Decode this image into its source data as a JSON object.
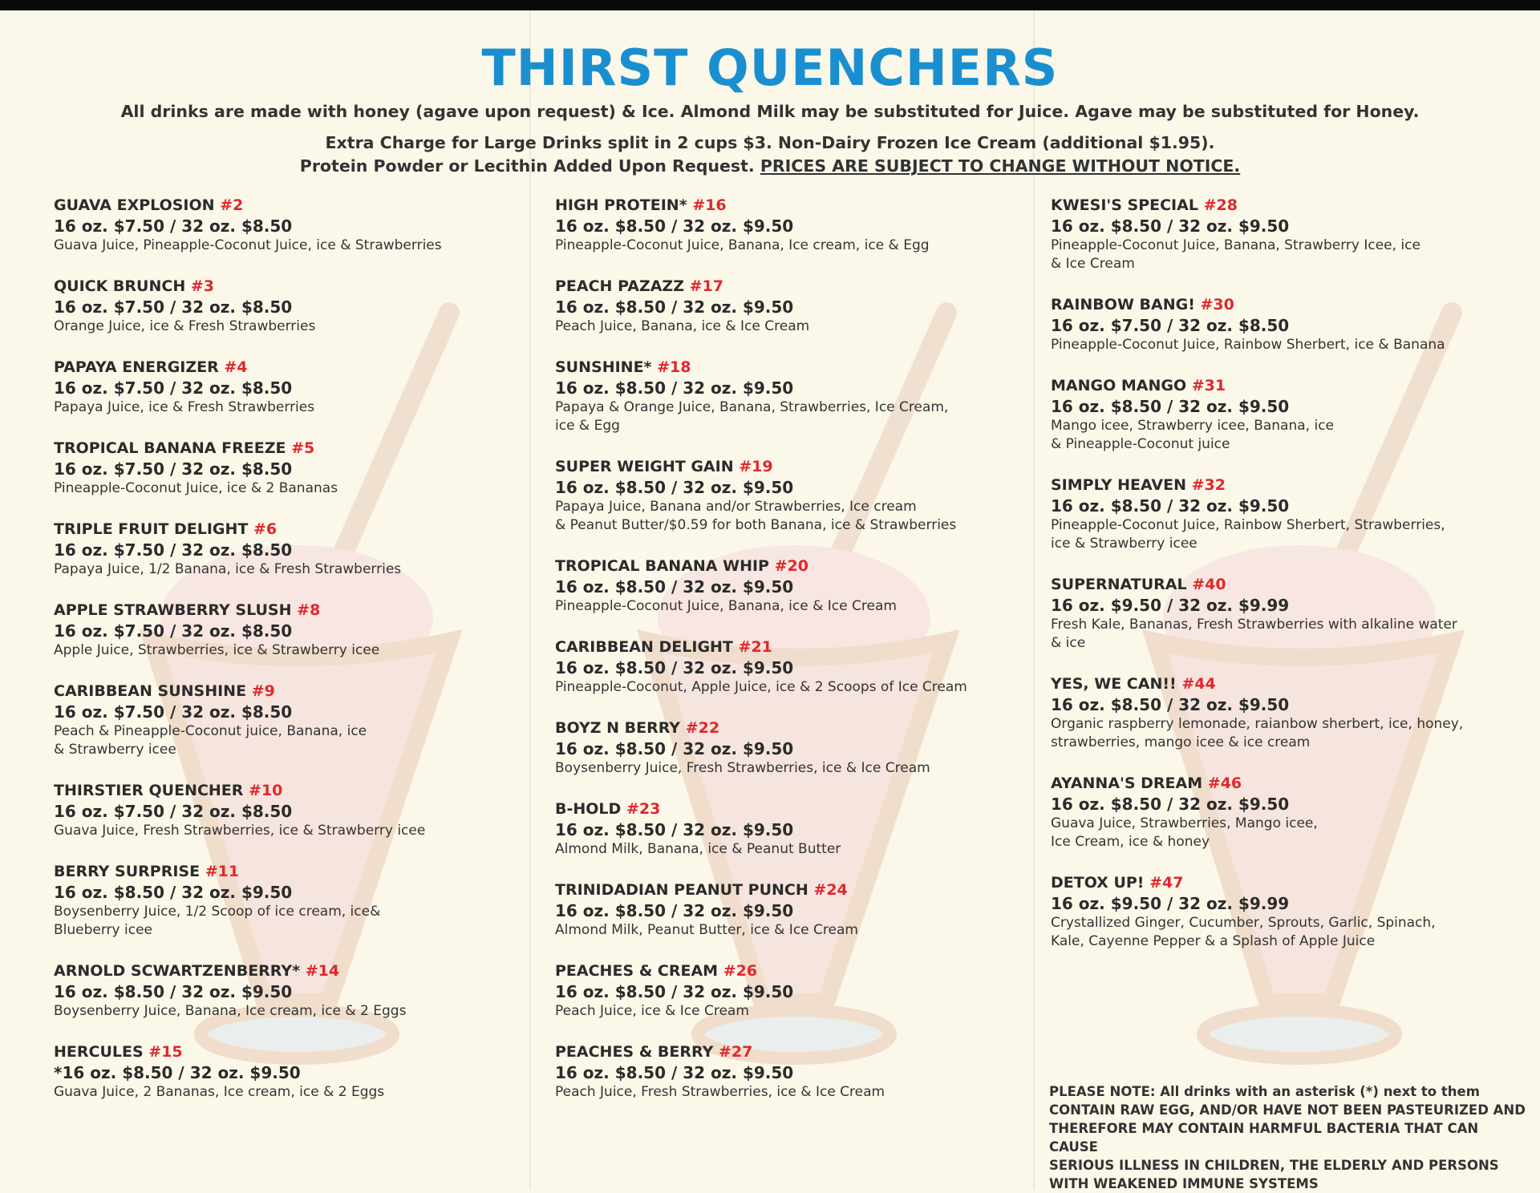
{
  "title": "THIRST QUENCHERS",
  "subtitle_line1": "All drinks are made with honey (agave upon request) & Ice. Almond Milk may be substituted for Juice. Agave may be substituted for Honey.",
  "subtitle_line2": "Extra Charge for Large Drinks split in 2 cups $3. Non-Dairy Frozen Ice Cream (additional $1.95).",
  "subtitle_line3": "Protein Powder or Lecithin Added Upon Request.",
  "subtitle_line3_underlined": "PRICES ARE SUBJECT TO CHANGE WITHOUT NOTICE.",
  "colors": {
    "title": "#1a8fd0",
    "number": "#e0282b",
    "background": "#fbf8ea"
  },
  "columns": [
    [
      {
        "name": "GUAVA EXPLOSION",
        "number": "#2",
        "price": "16 oz. $7.50 / 32 oz. $8.50",
        "desc": [
          "Guava Juice, Pineapple-Coconut Juice, ice & Strawberries"
        ]
      },
      {
        "name": "QUICK BRUNCH",
        "number": "#3",
        "price": "16 oz. $7.50 / 32 oz. $8.50",
        "desc": [
          "Orange Juice, ice & Fresh Strawberries"
        ]
      },
      {
        "name": "PAPAYA ENERGIZER",
        "number": "#4",
        "price": "16 oz. $7.50 / 32 oz. $8.50",
        "desc": [
          "Papaya Juice, ice & Fresh Strawberries"
        ]
      },
      {
        "name": "TROPICAL BANANA FREEZE",
        "number": "#5",
        "price": "16 oz. $7.50 / 32 oz. $8.50",
        "desc": [
          "Pineapple-Coconut Juice, ice & 2 Bananas"
        ]
      },
      {
        "name": "TRIPLE FRUIT DELIGHT",
        "number": "#6",
        "price": "16 oz. $7.50 / 32 oz. $8.50",
        "desc": [
          "Papaya Juice, 1/2 Banana, ice & Fresh Strawberries"
        ]
      },
      {
        "name": "APPLE STRAWBERRY SLUSH",
        "number": "#8",
        "price": "16 oz. $7.50 / 32 oz. $8.50",
        "desc": [
          "Apple Juice, Strawberries, ice & Strawberry icee"
        ]
      },
      {
        "name": "CARIBBEAN SUNSHINE",
        "number": "#9",
        "price": "16 oz. $7.50 / 32 oz. $8.50",
        "desc": [
          "Peach & Pineapple-Coconut juice, Banana, ice",
          "& Strawberry icee"
        ]
      },
      {
        "name": "THIRSTIER QUENCHER",
        "number": "#10",
        "price": "16 oz. $7.50 / 32 oz. $8.50",
        "desc": [
          "Guava Juice, Fresh Strawberries, ice & Strawberry icee"
        ]
      },
      {
        "name": "BERRY SURPRISE",
        "number": "#11",
        "price": "16 oz. $8.50 / 32 oz. $9.50",
        "desc": [
          "Boysenberry Juice, 1/2 Scoop of ice cream, ice&",
          "Blueberry icee"
        ]
      },
      {
        "name": "ARNOLD SCWARTZENBERRY*",
        "number": "#14",
        "price": "16 oz. $8.50 / 32 oz. $9.50",
        "desc": [
          "Boysenberry Juice, Banana, Ice cream, ice & 2 Eggs"
        ]
      },
      {
        "name": "HERCULES",
        "number": "#15",
        "price": "*16 oz. $8.50 / 32 oz. $9.50",
        "desc": [
          "Guava Juice, 2 Bananas, Ice cream, ice & 2 Eggs"
        ]
      }
    ],
    [
      {
        "name": "HIGH PROTEIN*",
        "number": "#16",
        "price": "16 oz. $8.50 / 32 oz. $9.50",
        "desc": [
          "Pineapple-Coconut Juice, Banana, Ice cream, ice & Egg"
        ]
      },
      {
        "name": "PEACH PAZAZZ",
        "number": "#17",
        "price": "16 oz. $8.50 / 32 oz. $9.50",
        "desc": [
          "Peach Juice, Banana, ice & Ice Cream"
        ]
      },
      {
        "name": "SUNSHINE*",
        "number": "#18",
        "price": "16 oz. $8.50 / 32 oz. $9.50",
        "desc": [
          "Papaya & Orange Juice, Banana, Strawberries, Ice Cream,",
          "ice & Egg"
        ]
      },
      {
        "name": "SUPER WEIGHT GAIN",
        "number": "#19",
        "price": "16 oz. $8.50 / 32 oz. $9.50",
        "desc": [
          "Papaya Juice, Banana and/or Strawberries, Ice cream",
          "& Peanut Butter/$0.59 for both Banana, ice & Strawberries"
        ]
      },
      {
        "name": "TROPICAL BANANA WHIP",
        "number": "#20",
        "price": "16 oz. $8.50 / 32 oz. $9.50",
        "desc": [
          "Pineapple-Coconut Juice, Banana, ice & Ice Cream"
        ]
      },
      {
        "name": "CARIBBEAN DELIGHT",
        "number": "#21",
        "price": "16 oz. $8.50 / 32 oz. $9.50",
        "desc": [
          "Pineapple-Coconut, Apple Juice, ice & 2 Scoops of Ice Cream"
        ]
      },
      {
        "name": "BOYZ N BERRY",
        "number": "#22",
        "price": "16 oz. $8.50 / 32 oz. $9.50",
        "desc": [
          "Boysenberry Juice, Fresh Strawberries, ice & Ice Cream"
        ]
      },
      {
        "name": "B-HOLD",
        "number": "#23",
        "price": "16 oz. $8.50 / 32 oz. $9.50",
        "desc": [
          "Almond Milk, Banana, ice & Peanut Butter"
        ]
      },
      {
        "name": "TRINIDADIAN PEANUT PUNCH",
        "number": "#24",
        "price": "16 oz. $8.50 / 32 oz. $9.50",
        "desc": [
          "Almond Milk, Peanut Butter, ice & Ice Cream"
        ]
      },
      {
        "name": "PEACHES & CREAM",
        "number": "#26",
        "price": "16 oz. $8.50 / 32 oz. $9.50",
        "desc": [
          "Peach Juice, ice & Ice Cream"
        ]
      },
      {
        "name": "PEACHES & BERRY",
        "number": "#27",
        "price": "16 oz. $8.50 / 32 oz. $9.50",
        "desc": [
          "Peach Juice, Fresh Strawberries, ice & Ice Cream"
        ]
      }
    ],
    [
      {
        "name": "KWESI'S SPECIAL",
        "number": "#28",
        "price": "16 oz. $8.50 / 32 oz. $9.50",
        "desc": [
          "Pineapple-Coconut Juice, Banana, Strawberry Icee, ice",
          "& Ice Cream"
        ]
      },
      {
        "name": "RAINBOW BANG!",
        "number": "#30",
        "price": "16 oz. $7.50 / 32 oz. $8.50",
        "desc": [
          "Pineapple-Coconut Juice, Rainbow Sherbert, ice & Banana"
        ]
      },
      {
        "name": "MANGO MANGO",
        "number": "#31",
        "price": "16 oz. $8.50 / 32 oz. $9.50",
        "desc": [
          "Mango icee, Strawberry icee, Banana, ice",
          "& Pineapple-Coconut juice"
        ]
      },
      {
        "name": "SIMPLY HEAVEN",
        "number": "#32",
        "price": "16 oz. $8.50 / 32 oz. $9.50",
        "desc": [
          "Pineapple-Coconut Juice, Rainbow Sherbert, Strawberries,",
          "ice & Strawberry icee"
        ]
      },
      {
        "name": "SUPERNATURAL",
        "number": "#40",
        "price": "16 oz. $9.50 / 32 oz. $9.99",
        "desc": [
          "Fresh Kale, Bananas, Fresh Strawberries with alkaline water",
          "& ice"
        ]
      },
      {
        "name": "YES, WE CAN!!",
        "number": "#44",
        "price": "16 oz. $8.50 / 32 oz. $9.50",
        "desc": [
          "Organic raspberry lemonade, raianbow sherbert, ice, honey,",
          "strawberries, mango icee & ice cream"
        ]
      },
      {
        "name": "AYANNA'S DREAM",
        "number": "#46",
        "price": "16 oz. $8.50 / 32 oz. $9.50",
        "desc": [
          "Guava Juice, Strawberries, Mango icee,",
          "Ice Cream, ice & honey"
        ]
      },
      {
        "name": "DETOX UP!",
        "number": "#47",
        "price": "16 oz. $9.50 / 32 oz. $9.99",
        "desc": [
          "Crystallized Ginger, Cucumber, Sprouts, Garlic, Spinach,",
          "Kale, Cayenne Pepper & a Splash of Apple Juice"
        ]
      }
    ]
  ],
  "note": [
    "PLEASE NOTE: All drinks with an asterisk (*) next to them",
    "CONTAIN RAW EGG, AND/OR HAVE NOT BEEN PASTEURIZED AND",
    "THEREFORE MAY CONTAIN HARMFUL BACTERIA THAT CAN CAUSE",
    "SERIOUS ILLNESS IN CHILDREN, THE ELDERLY AND PERSONS",
    "WITH WEAKENED IMMUNE SYSTEMS"
  ]
}
